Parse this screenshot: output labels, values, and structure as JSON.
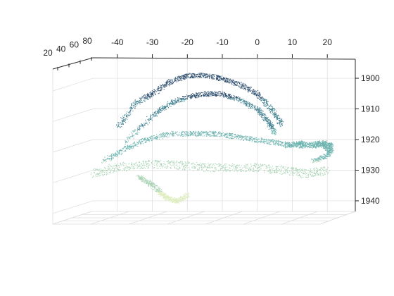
{
  "chart_data": {
    "type": "scatter",
    "subtype": "3d-point-cloud",
    "title": "",
    "xlabel": "",
    "ylabel": "",
    "zlabel": "",
    "x_ticks": [
      "-40",
      "-30",
      "-20",
      "-10",
      "0",
      "10",
      "20"
    ],
    "y_ticks": [
      "20",
      "40",
      "60",
      "80"
    ],
    "z_ticks": [
      "1900",
      "1910",
      "1920",
      "1930",
      "1940"
    ],
    "xlim": [
      -47,
      28
    ],
    "ylim": [
      10,
      90
    ],
    "zlim": [
      1897,
      1943
    ],
    "z_reversed": true,
    "grid": true,
    "legend": "none",
    "colormap": [
      "#2f4f6f",
      "#3f7f8f",
      "#6fb5b0",
      "#a8d3b4",
      "#dcecbc"
    ],
    "series": [
      {
        "name": "",
        "shape": "upper-arc",
        "points": [
          [
            -40,
            50,
            1916
          ],
          [
            -35,
            50,
            1908
          ],
          [
            -30,
            50,
            1905
          ],
          [
            -25,
            50,
            1901
          ],
          [
            -20,
            50,
            1899
          ],
          [
            -15,
            50,
            1899
          ],
          [
            -10,
            50,
            1900
          ],
          [
            -5,
            50,
            1902
          ],
          [
            0,
            50,
            1905
          ],
          [
            4,
            50,
            1910
          ],
          [
            7,
            50,
            1915
          ]
        ]
      },
      {
        "name": "",
        "shape": "inner-arc",
        "points": [
          [
            -38,
            50,
            1921
          ],
          [
            -30,
            50,
            1912
          ],
          [
            -25,
            50,
            1908
          ],
          [
            -20,
            50,
            1906
          ],
          [
            -15,
            50,
            1905
          ],
          [
            -10,
            50,
            1905
          ],
          [
            -5,
            50,
            1907
          ],
          [
            0,
            50,
            1910
          ],
          [
            3,
            50,
            1914
          ],
          [
            5,
            50,
            1918
          ]
        ]
      },
      {
        "name": "",
        "shape": "middle-band",
        "points": [
          [
            -44,
            50,
            1927
          ],
          [
            -38,
            50,
            1923
          ],
          [
            -32,
            50,
            1920
          ],
          [
            -25,
            50,
            1918
          ],
          [
            -18,
            50,
            1918
          ],
          [
            -12,
            50,
            1918
          ],
          [
            -6,
            50,
            1919
          ],
          [
            0,
            50,
            1920
          ],
          [
            6,
            50,
            1921
          ],
          [
            12,
            50,
            1922
          ],
          [
            18,
            50,
            1921
          ],
          [
            21,
            50,
            1924
          ]
        ]
      },
      {
        "name": "",
        "shape": "lower-band",
        "points": [
          [
            -47,
            50,
            1931
          ],
          [
            -40,
            50,
            1929
          ],
          [
            -32,
            50,
            1928
          ],
          [
            -24,
            50,
            1928
          ],
          [
            -16,
            50,
            1929
          ],
          [
            -8,
            50,
            1929
          ],
          [
            0,
            50,
            1929
          ],
          [
            8,
            50,
            1930
          ],
          [
            14,
            50,
            1931
          ],
          [
            20,
            50,
            1930
          ]
        ]
      },
      {
        "name": "",
        "shape": "hanging-lobe",
        "points": [
          [
            -34,
            50,
            1932
          ],
          [
            -31,
            50,
            1934
          ],
          [
            -28,
            50,
            1937
          ],
          [
            -26,
            50,
            1939
          ],
          [
            -23,
            50,
            1940
          ],
          [
            -20,
            50,
            1938
          ]
        ]
      },
      {
        "name": "",
        "shape": "right-tail",
        "points": [
          [
            8,
            50,
            1922
          ],
          [
            12,
            50,
            1921
          ],
          [
            16,
            50,
            1922
          ],
          [
            19,
            50,
            1921
          ],
          [
            21,
            50,
            1922
          ],
          [
            20,
            50,
            1925
          ],
          [
            16,
            50,
            1927
          ]
        ]
      }
    ]
  }
}
